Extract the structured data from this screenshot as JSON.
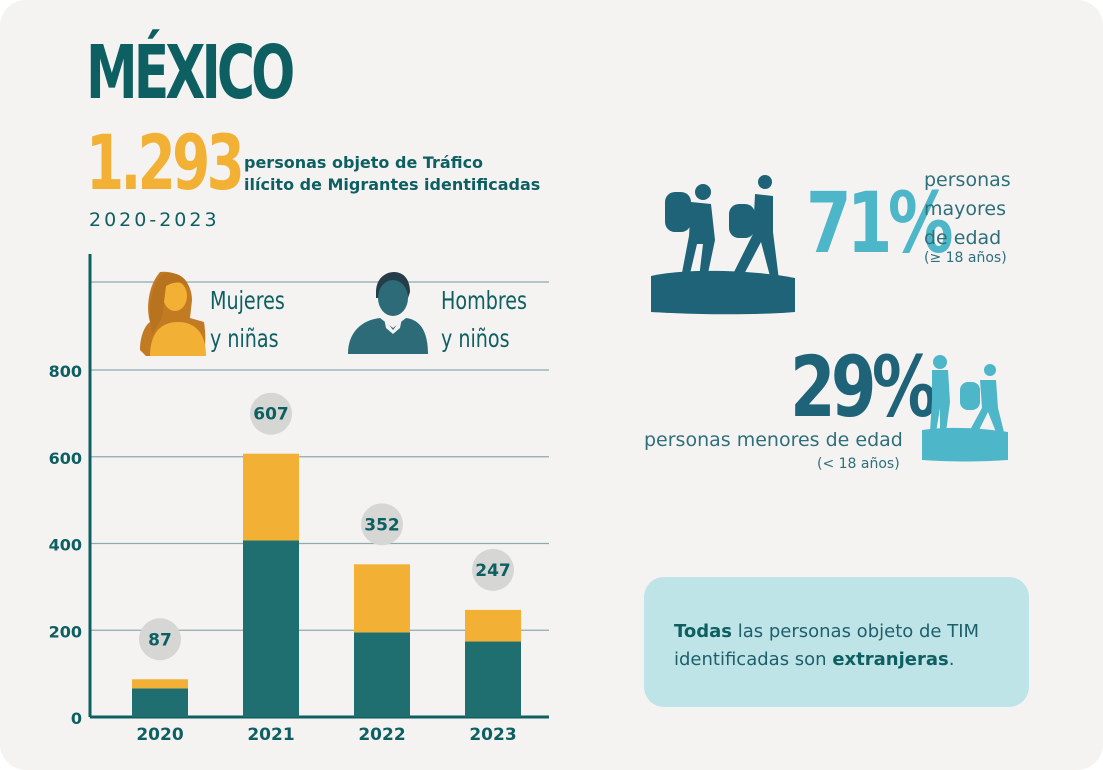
{
  "header": {
    "title": "MÉXICO",
    "total": "1.293",
    "total_caption_line1": "personas objeto de Tráfico",
    "total_caption_line2": "ilícito de Migrantes identificadas",
    "period": "2020-2023"
  },
  "legend": {
    "women": {
      "line1": "Mujeres",
      "line2": "y niñas",
      "color": "#f2b134"
    },
    "men": {
      "line1": "Hombres",
      "line2": "y niños",
      "color": "#1f6f70"
    }
  },
  "chart_data": {
    "type": "bar",
    "stacked": true,
    "categories": [
      "2020",
      "2021",
      "2022",
      "2023"
    ],
    "series": [
      {
        "name": "Hombres y niños",
        "values": [
          66,
          407,
          195,
          174
        ],
        "color": "#1f6f70"
      },
      {
        "name": "Mujeres y niñas",
        "values": [
          21,
          200,
          157,
          73
        ],
        "color": "#f2b134"
      }
    ],
    "totals": [
      "87",
      "607",
      "352",
      "247"
    ],
    "ylim": [
      0,
      800
    ],
    "yticks": [
      "0",
      "200",
      "400",
      "600",
      "800"
    ],
    "grid": true
  },
  "adults": {
    "percent": "71%",
    "line1": "personas",
    "line2": "mayores",
    "line3": "de edad",
    "sub": "(≥ 18 años)",
    "color": "#4db6c8"
  },
  "minors": {
    "percent": "29%",
    "line1": "personas menores de edad",
    "sub": "(< 18 años)",
    "color": "#1f6378"
  },
  "note": {
    "bold1": "Todas",
    "text1": " las personas objeto de TIM identificadas son ",
    "bold2": "extranjeras",
    "text2": "."
  }
}
